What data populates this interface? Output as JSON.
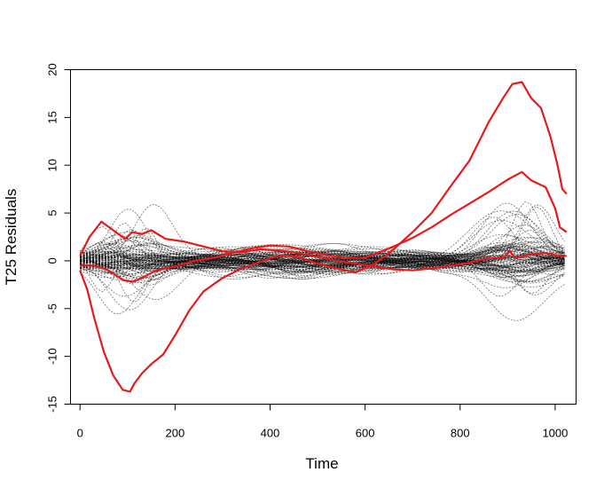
{
  "chart_data": {
    "type": "line",
    "title": "",
    "xlabel": "Time",
    "ylabel": "T25 Residuals",
    "xlim": [
      -20,
      1044
    ],
    "ylim": [
      -15,
      20
    ],
    "xticks": [
      0,
      200,
      400,
      600,
      800,
      1000
    ],
    "yticks": [
      -15,
      -10,
      -5,
      0,
      5,
      10,
      15,
      20
    ],
    "grid": false,
    "legend": "none",
    "background_series": {
      "description_count": 100,
      "color": "#000000",
      "style": "dotted",
      "x_range": [
        0,
        1024
      ],
      "typical_amplitude_range": [
        -8,
        8
      ]
    },
    "highlighted_series": [
      {
        "color": "#e41a1c",
        "points": [
          [
            0,
            0.5
          ],
          [
            20,
            2.5
          ],
          [
            45,
            4.1
          ],
          [
            70,
            3.2
          ],
          [
            95,
            2.3
          ],
          [
            110,
            3.0
          ],
          [
            130,
            2.8
          ],
          [
            150,
            3.2
          ],
          [
            180,
            2.3
          ],
          [
            220,
            2.0
          ],
          [
            260,
            1.5
          ],
          [
            300,
            1.0
          ],
          [
            340,
            0.9
          ],
          [
            380,
            1.2
          ],
          [
            420,
            1.1
          ],
          [
            460,
            0.8
          ],
          [
            500,
            0.4
          ],
          [
            540,
            0.0
          ],
          [
            580,
            -0.3
          ],
          [
            620,
            -0.6
          ],
          [
            660,
            -0.9
          ],
          [
            700,
            -1.0
          ],
          [
            740,
            -0.8
          ],
          [
            780,
            -0.5
          ],
          [
            820,
            -0.2
          ],
          [
            860,
            0.3
          ],
          [
            890,
            0.3
          ],
          [
            905,
            1.0
          ],
          [
            915,
            0.3
          ],
          [
            950,
            0.7
          ],
          [
            980,
            0.8
          ],
          [
            1000,
            0.6
          ],
          [
            1024,
            0.5
          ]
        ]
      },
      {
        "color": "#e41a1c",
        "points": [
          [
            0,
            -0.5
          ],
          [
            30,
            -0.5
          ],
          [
            60,
            -1.0
          ],
          [
            90,
            -2.0
          ],
          [
            110,
            -2.2
          ],
          [
            130,
            -1.8
          ],
          [
            160,
            -1.0
          ],
          [
            200,
            -0.6
          ],
          [
            240,
            0.0
          ],
          [
            280,
            0.3
          ],
          [
            320,
            0.8
          ],
          [
            360,
            1.3
          ],
          [
            400,
            1.6
          ],
          [
            440,
            1.5
          ],
          [
            480,
            1.0
          ],
          [
            520,
            0.6
          ],
          [
            560,
            0.3
          ],
          [
            600,
            0.3
          ],
          [
            620,
            0.7
          ],
          [
            660,
            1.5
          ],
          [
            700,
            2.4
          ],
          [
            740,
            3.5
          ],
          [
            780,
            4.8
          ],
          [
            820,
            6.0
          ],
          [
            860,
            7.2
          ],
          [
            900,
            8.5
          ],
          [
            930,
            9.3
          ],
          [
            950,
            8.4
          ],
          [
            980,
            7.7
          ],
          [
            1000,
            5.5
          ],
          [
            1010,
            3.5
          ],
          [
            1024,
            3.0
          ]
        ]
      },
      {
        "color": "#e41a1c",
        "points": [
          [
            0,
            -1.0
          ],
          [
            15,
            -3.0
          ],
          [
            30,
            -6.0
          ],
          [
            50,
            -9.5
          ],
          [
            70,
            -12.0
          ],
          [
            90,
            -13.5
          ],
          [
            105,
            -13.7
          ],
          [
            115,
            -12.8
          ],
          [
            130,
            -11.8
          ],
          [
            150,
            -10.8
          ],
          [
            175,
            -9.8
          ],
          [
            200,
            -7.8
          ],
          [
            230,
            -5.2
          ],
          [
            260,
            -3.2
          ],
          [
            300,
            -1.8
          ],
          [
            340,
            -0.8
          ],
          [
            380,
            -0.1
          ],
          [
            420,
            0.6
          ],
          [
            460,
            0.4
          ],
          [
            500,
            -0.3
          ],
          [
            540,
            -0.8
          ],
          [
            580,
            -1.2
          ],
          [
            620,
            -0.3
          ],
          [
            660,
            1.2
          ],
          [
            700,
            3.0
          ],
          [
            740,
            5.0
          ],
          [
            780,
            7.8
          ],
          [
            820,
            10.5
          ],
          [
            860,
            14.5
          ],
          [
            890,
            17.0
          ],
          [
            910,
            18.5
          ],
          [
            930,
            18.7
          ],
          [
            950,
            17.0
          ],
          [
            970,
            16.0
          ],
          [
            990,
            13.0
          ],
          [
            1005,
            10.0
          ],
          [
            1015,
            7.5
          ],
          [
            1024,
            7.0
          ]
        ]
      }
    ]
  }
}
